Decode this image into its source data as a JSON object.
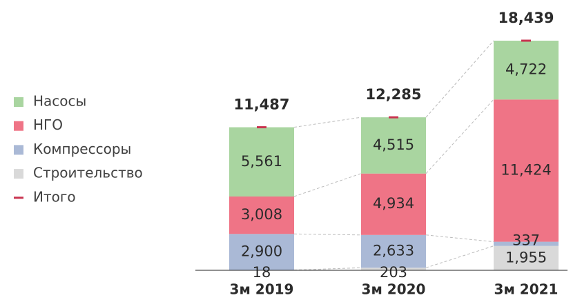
{
  "chart_data": {
    "type": "stacked_bar",
    "categories": [
      "3м 2019",
      "3м 2020",
      "3м 2021"
    ],
    "series": [
      {
        "name": "Строительство",
        "color": "#d9d9d9",
        "values": [
          18,
          203,
          1955
        ],
        "value_labels": [
          "18",
          "203",
          "1,955"
        ]
      },
      {
        "name": "Компрессоры",
        "color": "#aab9d6",
        "values": [
          2900,
          2633,
          337
        ],
        "value_labels": [
          "2,900",
          "2,633",
          "337"
        ]
      },
      {
        "name": "НГО",
        "color": "#ef7486",
        "values": [
          3008,
          4934,
          11424
        ],
        "value_labels": [
          "3,008",
          "4,934",
          "11,424"
        ]
      },
      {
        "name": "Насосы",
        "color": "#a9d5a0",
        "values": [
          5561,
          4515,
          4722
        ],
        "value_labels": [
          "5,561",
          "4,515",
          "4,722"
        ]
      }
    ],
    "total": {
      "name": "Итого",
      "color": "#c9334f",
      "values": [
        11487,
        12285,
        18439
      ],
      "value_labels": [
        "11,487",
        "12,285",
        "18,439"
      ]
    }
  }
}
